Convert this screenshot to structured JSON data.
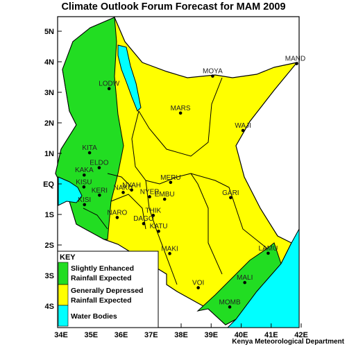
{
  "title": "Climate Outlook Forum Forecast for MAM 2009",
  "credit": "Kenya Meteorological Department",
  "colors": {
    "enhanced": "#22dd22",
    "depressed": "#ffff00",
    "water": "#00ffff",
    "border": "#000000"
  },
  "axes": {
    "lon_ticks": [
      "34E",
      "35E",
      "36E",
      "37E",
      "38E",
      "39E",
      "40E",
      "41E",
      "42E"
    ],
    "lat_ticks": [
      "5N",
      "4N",
      "3N",
      "2N",
      "1N",
      "EQ",
      "1S",
      "2S",
      "3S",
      "4S"
    ]
  },
  "towns": [
    {
      "name": "LODW",
      "lon": 35.6,
      "lat": 3.12
    },
    {
      "name": "MOYA",
      "lon": 39.05,
      "lat": 3.53
    },
    {
      "name": "MAND",
      "lon": 41.85,
      "lat": 3.94
    },
    {
      "name": "MARS",
      "lon": 37.98,
      "lat": 2.32
    },
    {
      "name": "WAJI",
      "lon": 40.06,
      "lat": 1.75
    },
    {
      "name": "KITA",
      "lon": 34.95,
      "lat": 1.02
    },
    {
      "name": "ELDO",
      "lon": 35.27,
      "lat": 0.53
    },
    {
      "name": "KAKA",
      "lon": 34.77,
      "lat": 0.29
    },
    {
      "name": "MERU",
      "lon": 37.65,
      "lat": 0.05
    },
    {
      "name": "NYAH",
      "lon": 36.35,
      "lat": -0.2
    },
    {
      "name": "KISU",
      "lon": 34.76,
      "lat": -0.1
    },
    {
      "name": "KERI",
      "lon": 35.28,
      "lat": -0.37
    },
    {
      "name": "NAKU",
      "lon": 36.07,
      "lat": -0.28
    },
    {
      "name": "NYER",
      "lon": 36.95,
      "lat": -0.42
    },
    {
      "name": "EMBU",
      "lon": 37.45,
      "lat": -0.5
    },
    {
      "name": "GARI",
      "lon": 39.65,
      "lat": -0.45
    },
    {
      "name": "KISI",
      "lon": 34.78,
      "lat": -0.68
    },
    {
      "name": "NARO",
      "lon": 35.87,
      "lat": -1.1
    },
    {
      "name": "THIK",
      "lon": 37.07,
      "lat": -1.03
    },
    {
      "name": "DAGO",
      "lon": 36.75,
      "lat": -1.3
    },
    {
      "name": "KATU",
      "lon": 37.25,
      "lat": -1.55
    },
    {
      "name": "MAKI",
      "lon": 37.62,
      "lat": -2.28
    },
    {
      "name": "LAMU",
      "lon": 40.9,
      "lat": -2.27
    },
    {
      "name": "MALI",
      "lon": 40.12,
      "lat": -3.23
    },
    {
      "name": "VOI",
      "lon": 38.57,
      "lat": -3.4
    },
    {
      "name": "MOMB",
      "lon": 39.62,
      "lat": -4.03
    }
  ],
  "legend": {
    "title": "KEY",
    "items": [
      {
        "label_line1": "Slightly Enhanced",
        "label_line2": "Rainfall Expected",
        "color_key": "enhanced"
      },
      {
        "label_line1": "Generally Depressed",
        "label_line2": "Rainfall Expected",
        "color_key": "depressed"
      },
      {
        "label_line1": "Water Bodies",
        "label_line2": "",
        "color_key": "water"
      }
    ]
  }
}
